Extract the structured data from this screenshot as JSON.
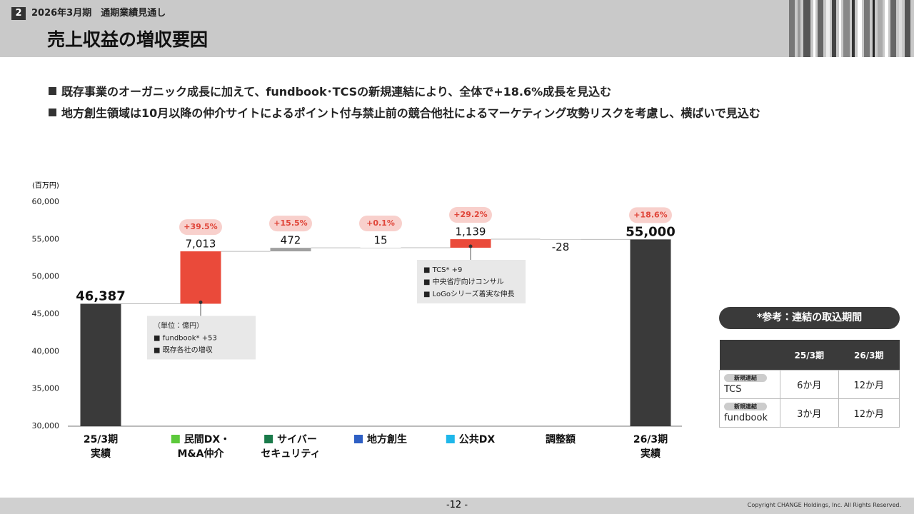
{
  "header": {
    "section_number": "2",
    "subtitle": "2026年3月期　通期業績見通し",
    "title": "売上収益の増収要因"
  },
  "bullets": [
    "既存事業のオーガニック成長に加えて、fundbook･TCSの新規連結により、全体で+18.6%成長を見込む",
    "地方創生領域は10月以降の仲介サイトによるポイント付与禁止前の競合他社によるマーケティング攻勢リスクを考慮し、横ばいで見込む"
  ],
  "chart_data": {
    "type": "waterfall",
    "y_label": "(百万円)",
    "categories": [
      [
        "25/3期",
        "実績"
      ],
      [
        "民間DX・",
        "M&A仲介"
      ],
      [
        "サイバー",
        "セキュリティ"
      ],
      [
        "地方創生"
      ],
      [
        "公共DX"
      ],
      [
        "調整額"
      ],
      [
        "26/3期",
        "実績"
      ]
    ],
    "values": [
      46387,
      7013,
      472,
      15,
      1139,
      -28,
      55000
    ],
    "value_labels": [
      "46,387",
      "7,013",
      "472",
      "15",
      "1,139",
      "-28",
      "55,000"
    ],
    "totals": [
      true,
      false,
      false,
      false,
      false,
      false,
      true
    ],
    "colors": [
      "#3a3a3a",
      "#ea4a3a",
      "#a0a0a0",
      "#a0a0a0",
      "#ea4a3a",
      "#a0a0a0",
      "#3a3a3a"
    ],
    "legend_colors": [
      null,
      "#5cc93b",
      "#1a7a4a",
      "#2e5fc4",
      "#1fb7ea",
      null,
      null
    ],
    "growth_labels": [
      null,
      "+39.5%",
      "+15.5%",
      "+0.1%",
      "+29.2%",
      null,
      "+18.6%"
    ],
    "callouts": [
      null,
      [
        "（単位：億円）",
        "■ fundbook* +53",
        "■ 既存各社の増収"
      ],
      null,
      null,
      [
        "■ TCS* +9",
        "■ 中央省庁向けコンサル",
        "■ LoGoシリーズ着実な伸長"
      ],
      null,
      null
    ],
    "ylim": [
      30000,
      60000
    ],
    "yticks": [
      {
        "value": 30000,
        "label": "30,000"
      },
      {
        "value": 35000,
        "label": "35,000"
      },
      {
        "value": 40000,
        "label": "40,000"
      },
      {
        "value": 45000,
        "label": "45,000"
      },
      {
        "value": 50000,
        "label": "50,000"
      },
      {
        "value": 55000,
        "label": "55,000"
      },
      {
        "value": 60000,
        "label": "60,000"
      }
    ],
    "grid": false
  },
  "reference": {
    "title": "*参考：連結の取込期間",
    "columns": [
      "25/3期",
      "26/3期"
    ],
    "rows": [
      {
        "tag": "新規連結",
        "name": "TCS",
        "cells": [
          "6か月",
          "12か月"
        ]
      },
      {
        "tag": "新規連結",
        "name": "fundbook",
        "cells": [
          "3か月",
          "12か月"
        ]
      }
    ]
  },
  "footer": {
    "page": "-12 -",
    "copyright": "Copyright CHANGE Holdings, Inc. All Rights Reserved."
  }
}
